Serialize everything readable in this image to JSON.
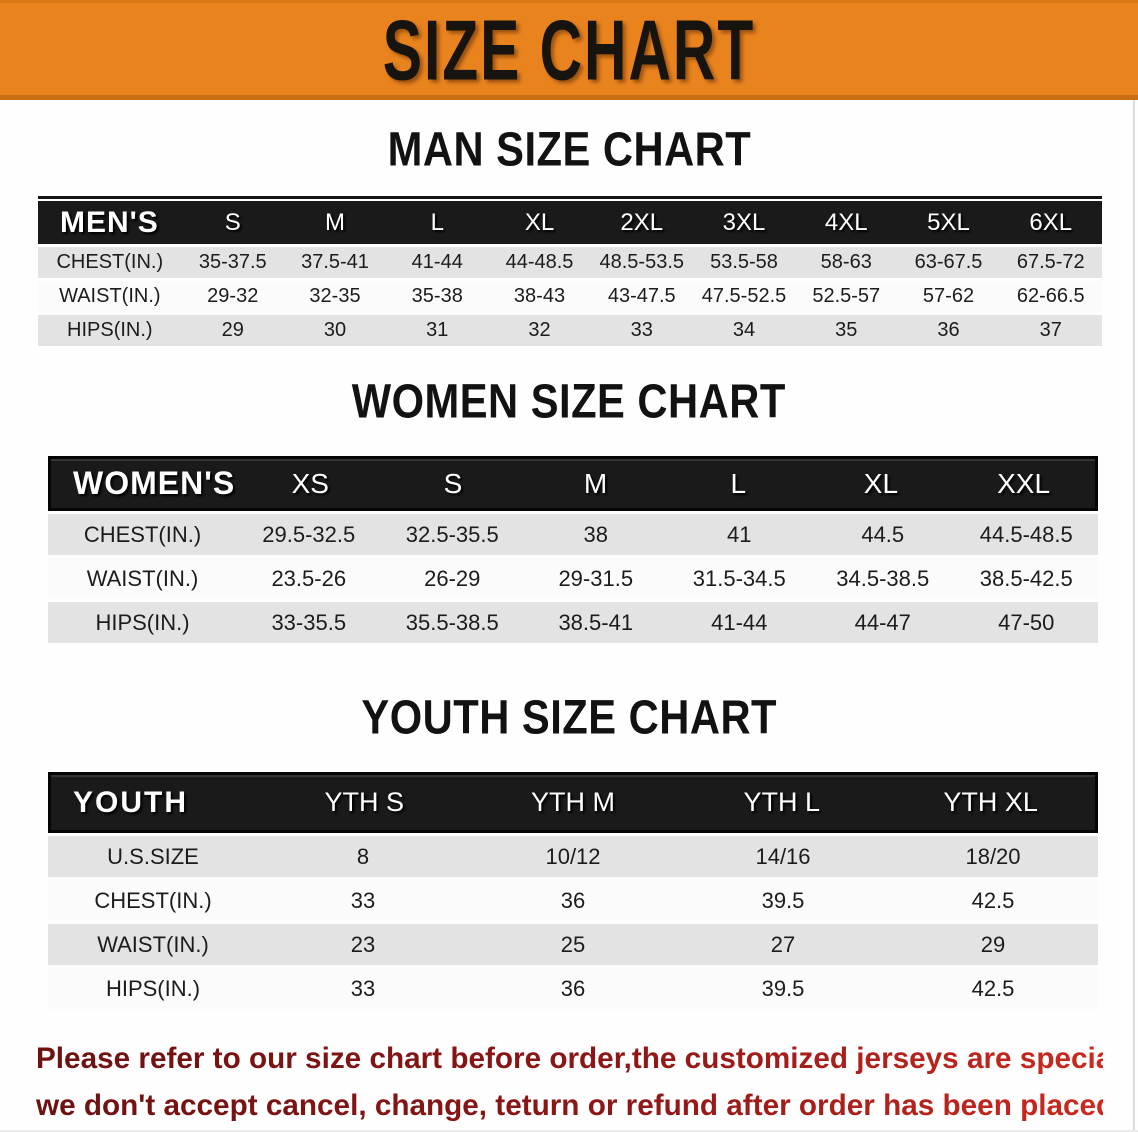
{
  "banner": {
    "title": "SIZE CHART"
  },
  "sections": [
    {
      "heading": "MAN SIZE CHART",
      "table": {
        "label": "MEN'S",
        "columns": [
          "S",
          "M",
          "L",
          "XL",
          "2XL",
          "3XL",
          "4XL",
          "5XL",
          "6XL"
        ],
        "rows": [
          {
            "label": "CHEST(IN.)",
            "values": [
              "35-37.5",
              "37.5-41",
              "41-44",
              "44-48.5",
              "48.5-53.5",
              "53.5-58",
              "58-63",
              "63-67.5",
              "67.5-72"
            ]
          },
          {
            "label": "WAIST(IN.)",
            "values": [
              "29-32",
              "32-35",
              "35-38",
              "38-43",
              "43-47.5",
              "47.5-52.5",
              "52.5-57",
              "57-62",
              "62-66.5"
            ]
          },
          {
            "label": "HIPS(IN.)",
            "values": [
              "29",
              "30",
              "31",
              "32",
              "33",
              "34",
              "35",
              "36",
              "37"
            ]
          }
        ]
      }
    },
    {
      "heading": "WOMEN SIZE CHART",
      "table": {
        "label": "WOMEN'S",
        "columns": [
          "XS",
          "S",
          "M",
          "L",
          "XL",
          "XXL"
        ],
        "rows": [
          {
            "label": "CHEST(IN.)",
            "values": [
              "29.5-32.5",
              "32.5-35.5",
              "38",
              "41",
              "44.5",
              "44.5-48.5"
            ]
          },
          {
            "label": "WAIST(IN.)",
            "values": [
              "23.5-26",
              "26-29",
              "29-31.5",
              "31.5-34.5",
              "34.5-38.5",
              "38.5-42.5"
            ]
          },
          {
            "label": "HIPS(IN.)",
            "values": [
              "33-35.5",
              "35.5-38.5",
              "38.5-41",
              "41-44",
              "44-47",
              "47-50"
            ]
          }
        ]
      }
    },
    {
      "heading": "YOUTH SIZE CHART",
      "table": {
        "label": "YOUTH",
        "columns": [
          "YTH S",
          "YTH M",
          "YTH L",
          "YTH XL"
        ],
        "rows": [
          {
            "label": "U.S.SIZE",
            "values": [
              "8",
              "10/12",
              "14/16",
              "18/20"
            ]
          },
          {
            "label": "CHEST(IN.)",
            "values": [
              "33",
              "36",
              "39.5",
              "42.5"
            ]
          },
          {
            "label": "WAIST(IN.)",
            "values": [
              "23",
              "25",
              "27",
              "29"
            ]
          },
          {
            "label": "HIPS(IN.)",
            "values": [
              "33",
              "36",
              "39.5",
              "42.5"
            ]
          }
        ]
      }
    }
  ],
  "disclaimer": {
    "line1": "Please refer to our size chart before order,the customized jerseys are special products,",
    "line2": "we don't accept cancel, change, teturn or refund after order has been placed!"
  },
  "colors": {
    "banner_bg": "#e9831e",
    "header_bar_bg": "#1a1a1a",
    "row_gray": "#e3e3e3",
    "row_white": "#fbfbfb",
    "disclaimer_red_dark": "#6e1111",
    "disclaimer_red_bright": "#cc2a20"
  }
}
